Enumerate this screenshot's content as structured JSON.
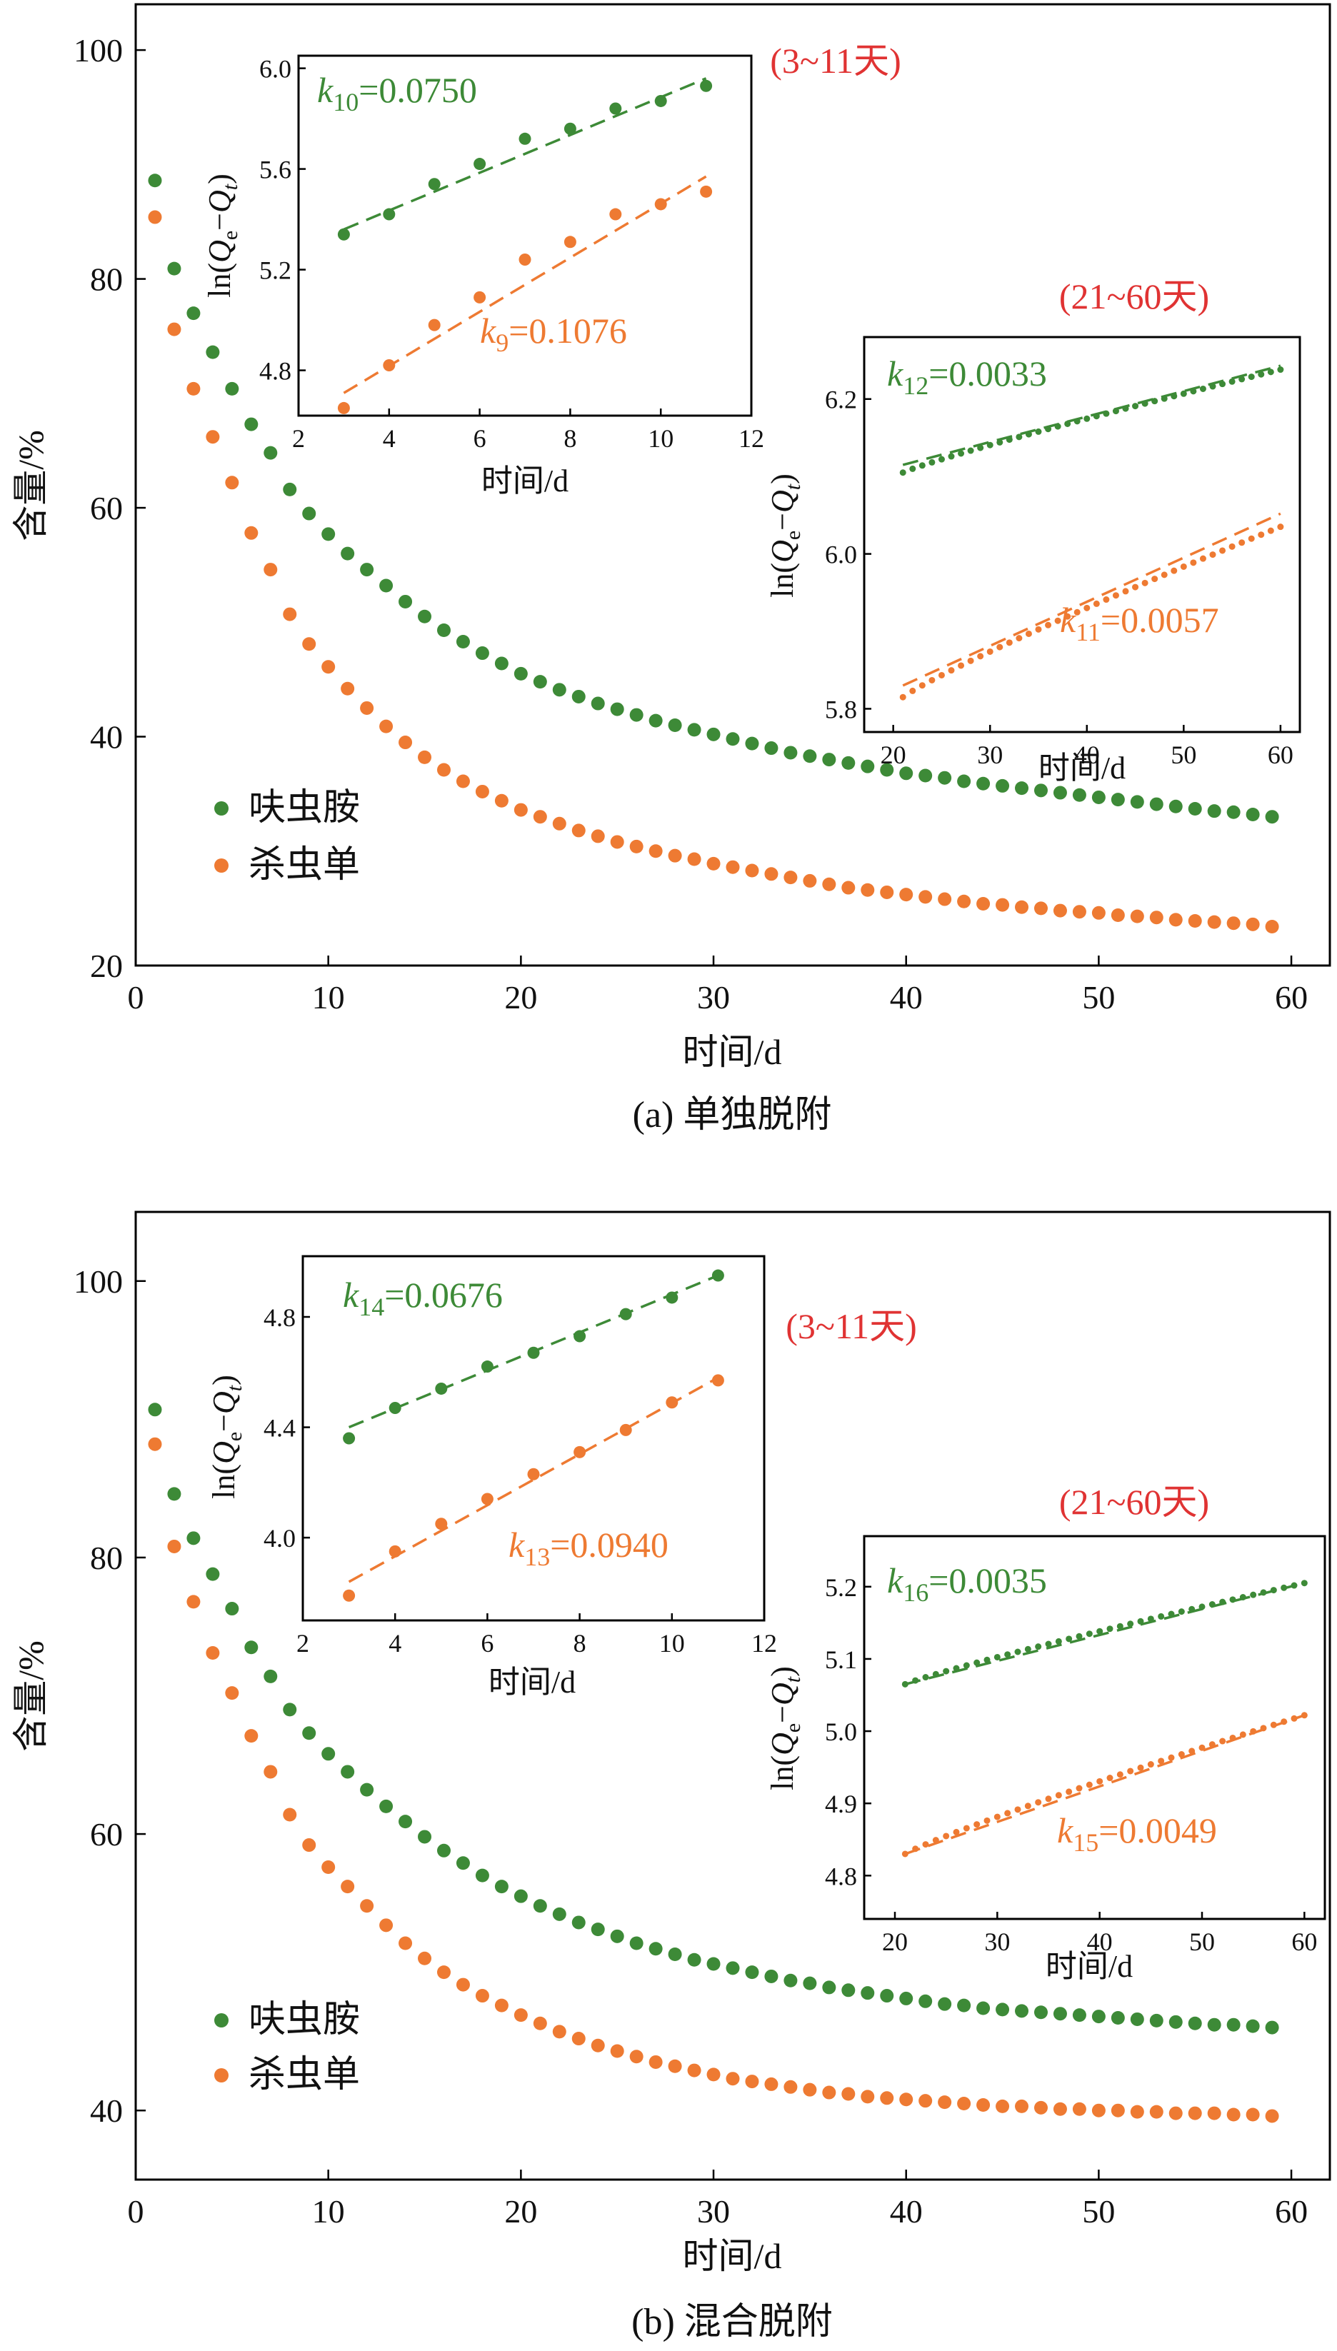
{
  "colors": {
    "green": "#3d8a37",
    "orange": "#ee7a32",
    "red": "#e03333"
  },
  "legend": {
    "green": "呋虫胺",
    "orange": "杀虫单"
  },
  "chart_data": [
    {
      "type": "scatter",
      "panel": "a",
      "caption": "(a) 单独脱附",
      "xlabel": "时间/d",
      "ylabel": "含量/%",
      "xlim": [
        0,
        62
      ],
      "ylim": [
        20,
        104
      ],
      "xticks": [
        0,
        10,
        20,
        30,
        40,
        50,
        60
      ],
      "yticks": [
        20,
        40,
        60,
        80,
        100
      ],
      "legend_position": "lower-left",
      "series": [
        {
          "name": "呋虫胺",
          "color": "green",
          "values": [
            88.6,
            80.9,
            77.0,
            73.6,
            70.4,
            67.3,
            64.8,
            61.6,
            59.5,
            57.7,
            56.0,
            54.6,
            53.2,
            51.8,
            50.5,
            49.3,
            48.3,
            47.3,
            46.4,
            45.5,
            44.8,
            44.1,
            43.5,
            42.9,
            42.4,
            41.9,
            41.4,
            41.0,
            40.6,
            40.2,
            39.8,
            39.4,
            39.0,
            38.6,
            38.3,
            38.0,
            37.7,
            37.4,
            37.1,
            36.8,
            36.6,
            36.4,
            36.1,
            35.9,
            35.7,
            35.5,
            35.3,
            35.1,
            34.9,
            34.7,
            34.5,
            34.3,
            34.1,
            33.9,
            33.7,
            33.5,
            33.4,
            33.2,
            33.0
          ]
        },
        {
          "name": "杀虫单",
          "color": "orange",
          "values": [
            85.4,
            75.6,
            70.4,
            66.2,
            62.2,
            57.8,
            54.6,
            50.7,
            48.1,
            46.1,
            44.2,
            42.5,
            40.9,
            39.5,
            38.2,
            37.1,
            36.1,
            35.2,
            34.4,
            33.6,
            33.0,
            32.4,
            31.8,
            31.3,
            30.8,
            30.4,
            30.0,
            29.6,
            29.3,
            28.9,
            28.6,
            28.3,
            28.0,
            27.7,
            27.4,
            27.1,
            26.8,
            26.6,
            26.4,
            26.2,
            26.0,
            25.8,
            25.6,
            25.4,
            25.3,
            25.1,
            25.0,
            24.8,
            24.7,
            24.6,
            24.4,
            24.3,
            24.2,
            24.0,
            23.9,
            23.8,
            23.7,
            23.6,
            23.4
          ]
        }
      ],
      "insets": [
        {
          "range_label": "(3~11天)",
          "xlabel": "时间/d",
          "ylabel_main": "ln(",
          "ylabel_q1": "Q",
          "ylabel_sub1": "e",
          "ylabel_mid": "−",
          "ylabel_q2": "Q",
          "ylabel_sub2": "t",
          "ylabel_close": ")",
          "xlim": [
            2,
            12
          ],
          "ylim": [
            4.62,
            6.05
          ],
          "xticks": [
            2,
            4,
            6,
            8,
            10,
            12
          ],
          "yticks": [
            "4.8",
            "5.2",
            "5.6",
            "6.0"
          ],
          "series": [
            {
              "name": "呋虫胺",
              "color": "green",
              "k_letter": "k",
              "k_index": "10",
              "k_value": "=0.0750",
              "x": [
                3,
                4,
                5,
                6,
                7,
                8,
                9,
                10,
                11
              ],
              "values": [
                5.34,
                5.42,
                5.54,
                5.62,
                5.72,
                5.76,
                5.84,
                5.87,
                5.93
              ],
              "fit": [
                [
                  3,
                  5.36
                ],
                [
                  11,
                  5.96
                ]
              ]
            },
            {
              "name": "杀虫单",
              "color": "orange",
              "k_letter": "k",
              "k_index": "9",
              "k_value": "=0.1076",
              "x": [
                3,
                4,
                5,
                6,
                7,
                8,
                9,
                10,
                11
              ],
              "values": [
                4.65,
                4.82,
                4.98,
                5.09,
                5.24,
                5.31,
                5.42,
                5.46,
                5.51
              ],
              "fit": [
                [
                  3,
                  4.71
                ],
                [
                  11,
                  5.57
                ]
              ]
            }
          ]
        },
        {
          "range_label": "(21~60天)",
          "xlabel": "时间/d",
          "ylabel_main": "ln(",
          "ylabel_q1": "Q",
          "ylabel_sub1": "e",
          "ylabel_mid": "−",
          "ylabel_q2": "Q",
          "ylabel_sub2": "t",
          "ylabel_close": ")",
          "xlim": [
            17,
            62
          ],
          "ylim": [
            5.77,
            6.28
          ],
          "xticks": [
            20,
            30,
            40,
            50,
            60
          ],
          "yticks": [
            "5.8",
            "6.0",
            "6.2"
          ],
          "series": [
            {
              "name": "呋虫胺",
              "color": "green",
              "k_letter": "k",
              "k_index": "12",
              "k_value": "=0.0033",
              "range": [
                21,
                60
              ],
              "start": 6.105,
              "end": 6.238,
              "fit": [
                [
                  21,
                  6.115
                ],
                [
                  60,
                  6.243
                ]
              ]
            },
            {
              "name": "杀虫单",
              "color": "orange",
              "k_letter": "k",
              "k_index": "11",
              "k_value": "=0.0057",
              "range": [
                21,
                60
              ],
              "start": 5.815,
              "end": 6.035,
              "fit": [
                [
                  21,
                  5.83
                ],
                [
                  60,
                  6.052
                ]
              ]
            }
          ]
        }
      ]
    },
    {
      "type": "scatter",
      "panel": "b",
      "caption": "(b) 混合脱附",
      "xlabel": "时间/d",
      "ylabel": "含量/%",
      "xlim": [
        0,
        62
      ],
      "ylim": [
        35,
        105
      ],
      "xticks": [
        0,
        10,
        20,
        30,
        40,
        50,
        60
      ],
      "yticks": [
        40,
        60,
        80,
        100
      ],
      "legend_position": "lower-left",
      "series": [
        {
          "name": "呋虫胺",
          "color": "green",
          "values": [
            90.7,
            84.6,
            81.4,
            78.8,
            76.3,
            73.5,
            71.4,
            69.0,
            67.3,
            65.8,
            64.5,
            63.2,
            62.0,
            60.9,
            59.8,
            58.8,
            57.9,
            57.0,
            56.2,
            55.5,
            54.8,
            54.2,
            53.6,
            53.1,
            52.6,
            52.1,
            51.7,
            51.3,
            50.9,
            50.6,
            50.3,
            50.0,
            49.7,
            49.4,
            49.2,
            48.9,
            48.7,
            48.5,
            48.3,
            48.1,
            47.9,
            47.7,
            47.6,
            47.4,
            47.3,
            47.2,
            47.1,
            47.0,
            46.9,
            46.8,
            46.7,
            46.6,
            46.5,
            46.4,
            46.3,
            46.2,
            46.2,
            46.1,
            46.0
          ]
        },
        {
          "name": "杀虫单",
          "color": "orange",
          "values": [
            88.2,
            80.8,
            76.8,
            73.1,
            70.2,
            67.1,
            64.5,
            61.4,
            59.2,
            57.6,
            56.2,
            54.8,
            53.4,
            52.1,
            51.0,
            50.0,
            49.1,
            48.3,
            47.6,
            46.9,
            46.3,
            45.7,
            45.2,
            44.7,
            44.3,
            43.9,
            43.5,
            43.2,
            42.9,
            42.6,
            42.3,
            42.1,
            41.9,
            41.7,
            41.5,
            41.3,
            41.2,
            41.0,
            40.9,
            40.8,
            40.7,
            40.6,
            40.5,
            40.4,
            40.3,
            40.3,
            40.2,
            40.1,
            40.1,
            40.0,
            40.0,
            39.9,
            39.9,
            39.8,
            39.8,
            39.8,
            39.7,
            39.7,
            39.6
          ]
        }
      ],
      "insets": [
        {
          "range_label": "(3~11天)",
          "xlabel": "时间/d",
          "ylabel_main": "ln(",
          "ylabel_q1": "Q",
          "ylabel_sub1": "e",
          "ylabel_mid": "−",
          "ylabel_q2": "Q",
          "ylabel_sub2": "t",
          "ylabel_close": ")",
          "xlim": [
            2,
            12
          ],
          "ylim": [
            3.7,
            5.02
          ],
          "xticks": [
            2,
            4,
            6,
            8,
            10,
            12
          ],
          "yticks": [
            "4.0",
            "4.4",
            "4.8"
          ],
          "series": [
            {
              "name": "呋虫胺",
              "color": "green",
              "k_letter": "k",
              "k_index": "14",
              "k_value": "=0.0676",
              "x": [
                3,
                4,
                5,
                6,
                7,
                8,
                9,
                10,
                11
              ],
              "values": [
                4.36,
                4.47,
                4.54,
                4.62,
                4.67,
                4.73,
                4.81,
                4.87,
                4.95
              ],
              "fit": [
                [
                  3,
                  4.4
                ],
                [
                  11,
                  4.95
                ]
              ]
            },
            {
              "name": "杀虫单",
              "color": "orange",
              "k_letter": "k",
              "k_index": "13",
              "k_value": "=0.0940",
              "x": [
                3,
                4,
                5,
                6,
                7,
                8,
                9,
                10,
                11
              ],
              "values": [
                3.79,
                3.95,
                4.05,
                4.14,
                4.23,
                4.31,
                4.39,
                4.49,
                4.57
              ],
              "fit": [
                [
                  3,
                  3.84
                ],
                [
                  11,
                  4.58
                ]
              ]
            }
          ]
        },
        {
          "range_label": "(21~60天)",
          "xlabel": "时间/d",
          "ylabel_main": "ln(",
          "ylabel_q1": "Q",
          "ylabel_sub1": "e",
          "ylabel_mid": "−",
          "ylabel_q2": "Q",
          "ylabel_sub2": "t",
          "ylabel_close": ")",
          "xlim": [
            17,
            62
          ],
          "ylim": [
            4.74,
            5.27
          ],
          "xticks": [
            20,
            30,
            40,
            50,
            60
          ],
          "yticks": [
            "4.8",
            "4.9",
            "5.0",
            "5.1",
            "5.2"
          ],
          "series": [
            {
              "name": "呋虫胺",
              "color": "green",
              "k_letter": "k",
              "k_index": "16",
              "k_value": "=0.0035",
              "range": [
                21,
                60
              ],
              "start": 5.065,
              "end": 5.205,
              "fit": [
                [
                  21,
                  5.065
                ],
                [
                  60,
                  5.205
                ]
              ]
            },
            {
              "name": "杀虫单",
              "color": "orange",
              "k_letter": "k",
              "k_index": "15",
              "k_value": "=0.0049",
              "range": [
                21,
                60
              ],
              "start": 4.83,
              "end": 5.022,
              "fit": [
                [
                  21,
                  4.83
                ],
                [
                  60,
                  5.022
                ]
              ]
            }
          ]
        }
      ]
    }
  ]
}
